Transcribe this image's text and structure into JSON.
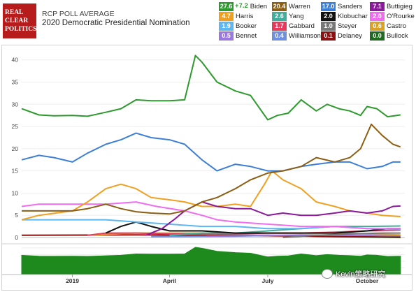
{
  "header": {
    "logo_lines": [
      "REAL",
      "CLEAR",
      "POLITICS"
    ],
    "poll_type": "RCP POLL AVERAGE",
    "title": "2020 Democratic Presidential Nomination"
  },
  "legend": [
    {
      "value": "27.6",
      "name": "Biden",
      "color": "#2e9a2e",
      "spread": "+7.2"
    },
    {
      "value": "20.4",
      "name": "Warren",
      "color": "#8b5e14"
    },
    {
      "value": "17.0",
      "name": "Sanders",
      "color": "#3d7fd6"
    },
    {
      "value": "7.1",
      "name": "Buttigieg",
      "color": "#8a1a9a"
    },
    {
      "value": "4.7",
      "name": "Harris",
      "color": "#f0a020"
    },
    {
      "value": "2.6",
      "name": "Yang",
      "color": "#3fae9c"
    },
    {
      "value": "2.0",
      "name": "Klobuchar",
      "color": "#111111"
    },
    {
      "value": "2.0",
      "name": "O'Rourke",
      "color": "#f06cf0"
    },
    {
      "value": "1.9",
      "name": "Booker",
      "color": "#5db7f0"
    },
    {
      "value": "1.7",
      "name": "Gabbard",
      "color": "#e8385c"
    },
    {
      "value": "1.0",
      "name": "Steyer",
      "color": "#777777"
    },
    {
      "value": "0.6",
      "name": "Castro",
      "color": "#d9a226"
    },
    {
      "value": "0.5",
      "name": "Bennet",
      "color": "#9a78e0"
    },
    {
      "value": "0.4",
      "name": "Williamson",
      "color": "#6f8fe0"
    },
    {
      "value": "0.1",
      "name": "Delaney",
      "color": "#8b1111"
    },
    {
      "value": "0.0",
      "name": "Bullock",
      "color": "#1f6b1f"
    }
  ],
  "watermark": "Kevin策略研究",
  "chart_data": {
    "type": "line",
    "ylim": [
      0,
      42
    ],
    "yticks": [
      0,
      5,
      10,
      15,
      20,
      25,
      30,
      35,
      40
    ],
    "x_domain": [
      "2018-11-15",
      "2019-11-05"
    ],
    "x_ticks": [
      {
        "date": "2019-01-01",
        "label": "2019"
      },
      {
        "date": "2019-04-01",
        "label": "April"
      },
      {
        "date": "2019-07-01",
        "label": "July"
      },
      {
        "date": "2019-10-01",
        "label": "October"
      }
    ],
    "series": [
      {
        "name": "Biden",
        "color": "#2e9a2e",
        "points": [
          [
            "2018-11-15",
            29
          ],
          [
            "2018-12-01",
            27.6
          ],
          [
            "2018-12-15",
            27.4
          ],
          [
            "2019-01-01",
            27.5
          ],
          [
            "2019-01-15",
            27.3
          ],
          [
            "2019-02-01",
            28.2
          ],
          [
            "2019-02-15",
            29
          ],
          [
            "2019-03-01",
            31
          ],
          [
            "2019-03-15",
            30.8
          ],
          [
            "2019-04-01",
            30.8
          ],
          [
            "2019-04-15",
            31
          ],
          [
            "2019-04-25",
            41
          ],
          [
            "2019-05-01",
            39.5
          ],
          [
            "2019-05-15",
            35
          ],
          [
            "2019-06-01",
            33
          ],
          [
            "2019-06-15",
            32
          ],
          [
            "2019-07-01",
            26.5
          ],
          [
            "2019-07-10",
            27.5
          ],
          [
            "2019-07-20",
            28
          ],
          [
            "2019-08-01",
            31
          ],
          [
            "2019-08-15",
            28.5
          ],
          [
            "2019-08-25",
            30
          ],
          [
            "2019-09-05",
            29
          ],
          [
            "2019-09-15",
            28.5
          ],
          [
            "2019-09-25",
            27.5
          ],
          [
            "2019-10-01",
            29.5
          ],
          [
            "2019-10-10",
            29
          ],
          [
            "2019-10-20",
            27.2
          ],
          [
            "2019-11-01",
            27.6
          ]
        ]
      },
      {
        "name": "Warren",
        "color": "#8b5e14",
        "points": [
          [
            "2018-11-15",
            6
          ],
          [
            "2018-12-01",
            6
          ],
          [
            "2018-12-15",
            6
          ],
          [
            "2019-01-01",
            6
          ],
          [
            "2019-01-15",
            6.5
          ],
          [
            "2019-02-01",
            7.5
          ],
          [
            "2019-02-15",
            6.5
          ],
          [
            "2019-03-01",
            5.8
          ],
          [
            "2019-03-15",
            5.5
          ],
          [
            "2019-04-01",
            5.3
          ],
          [
            "2019-04-15",
            6
          ],
          [
            "2019-05-01",
            8
          ],
          [
            "2019-05-15",
            9
          ],
          [
            "2019-06-01",
            11
          ],
          [
            "2019-06-15",
            13
          ],
          [
            "2019-07-01",
            14.5
          ],
          [
            "2019-07-15",
            15
          ],
          [
            "2019-08-01",
            16
          ],
          [
            "2019-08-15",
            18
          ],
          [
            "2019-09-01",
            17
          ],
          [
            "2019-09-15",
            18
          ],
          [
            "2019-09-25",
            20
          ],
          [
            "2019-10-05",
            25.5
          ],
          [
            "2019-10-15",
            23
          ],
          [
            "2019-10-25",
            21
          ],
          [
            "2019-11-01",
            20.4
          ]
        ]
      },
      {
        "name": "Sanders",
        "color": "#3d7fd6",
        "points": [
          [
            "2018-11-15",
            17.5
          ],
          [
            "2018-12-01",
            18.5
          ],
          [
            "2018-12-15",
            18
          ],
          [
            "2019-01-01",
            17
          ],
          [
            "2019-01-15",
            19
          ],
          [
            "2019-02-01",
            21
          ],
          [
            "2019-02-15",
            22
          ],
          [
            "2019-03-01",
            23.5
          ],
          [
            "2019-03-15",
            22.5
          ],
          [
            "2019-04-01",
            22
          ],
          [
            "2019-04-15",
            21
          ],
          [
            "2019-05-01",
            17.5
          ],
          [
            "2019-05-15",
            15
          ],
          [
            "2019-06-01",
            16.5
          ],
          [
            "2019-06-15",
            16
          ],
          [
            "2019-07-01",
            15
          ],
          [
            "2019-07-15",
            15
          ],
          [
            "2019-08-01",
            16
          ],
          [
            "2019-08-15",
            16.5
          ],
          [
            "2019-09-01",
            17
          ],
          [
            "2019-09-15",
            17
          ],
          [
            "2019-10-01",
            15.5
          ],
          [
            "2019-10-15",
            16
          ],
          [
            "2019-10-25",
            17
          ],
          [
            "2019-11-01",
            17
          ]
        ]
      },
      {
        "name": "Buttigieg",
        "color": "#8a1a9a",
        "points": [
          [
            "2019-03-10",
            0.5
          ],
          [
            "2019-03-25",
            2
          ],
          [
            "2019-04-05",
            4
          ],
          [
            "2019-04-15",
            6
          ],
          [
            "2019-05-01",
            8
          ],
          [
            "2019-05-15",
            7
          ],
          [
            "2019-06-01",
            6.5
          ],
          [
            "2019-06-15",
            6.5
          ],
          [
            "2019-07-01",
            5
          ],
          [
            "2019-07-15",
            5.5
          ],
          [
            "2019-08-01",
            5
          ],
          [
            "2019-08-15",
            5
          ],
          [
            "2019-09-01",
            5.5
          ],
          [
            "2019-09-15",
            6
          ],
          [
            "2019-10-01",
            5.5
          ],
          [
            "2019-10-15",
            6
          ],
          [
            "2019-10-25",
            7
          ],
          [
            "2019-11-01",
            7.1
          ]
        ]
      },
      {
        "name": "Harris",
        "color": "#f0a020",
        "points": [
          [
            "2018-11-15",
            4
          ],
          [
            "2018-12-01",
            5
          ],
          [
            "2019-01-01",
            6
          ],
          [
            "2019-01-15",
            8
          ],
          [
            "2019-02-01",
            11
          ],
          [
            "2019-02-15",
            12
          ],
          [
            "2019-03-01",
            11
          ],
          [
            "2019-03-15",
            9
          ],
          [
            "2019-04-01",
            8.5
          ],
          [
            "2019-04-15",
            8
          ],
          [
            "2019-05-01",
            7
          ],
          [
            "2019-05-15",
            7
          ],
          [
            "2019-06-01",
            7.5
          ],
          [
            "2019-06-15",
            7
          ],
          [
            "2019-06-28",
            12
          ],
          [
            "2019-07-05",
            15
          ],
          [
            "2019-07-15",
            13
          ],
          [
            "2019-08-01",
            11
          ],
          [
            "2019-08-15",
            8
          ],
          [
            "2019-09-01",
            7
          ],
          [
            "2019-09-15",
            6
          ],
          [
            "2019-10-01",
            5.5
          ],
          [
            "2019-10-15",
            5
          ],
          [
            "2019-11-01",
            4.7
          ]
        ]
      },
      {
        "name": "O'Rourke",
        "color": "#f06cf0",
        "points": [
          [
            "2018-11-15",
            7
          ],
          [
            "2018-12-01",
            7.5
          ],
          [
            "2019-01-01",
            7.5
          ],
          [
            "2019-02-01",
            7.5
          ],
          [
            "2019-03-01",
            8
          ],
          [
            "2019-03-20",
            7
          ],
          [
            "2019-04-15",
            6
          ],
          [
            "2019-05-01",
            5
          ],
          [
            "2019-05-15",
            4
          ],
          [
            "2019-06-01",
            3.5
          ],
          [
            "2019-07-01",
            3
          ],
          [
            "2019-08-01",
            2.5
          ],
          [
            "2019-09-01",
            2.5
          ],
          [
            "2019-10-01",
            2
          ],
          [
            "2019-11-01",
            2
          ]
        ]
      },
      {
        "name": "Booker",
        "color": "#5db7f0",
        "points": [
          [
            "2018-11-15",
            4
          ],
          [
            "2018-12-01",
            4
          ],
          [
            "2019-01-01",
            4
          ],
          [
            "2019-02-01",
            4
          ],
          [
            "2019-03-01",
            3.5
          ],
          [
            "2019-04-01",
            3
          ],
          [
            "2019-05-01",
            2.5
          ],
          [
            "2019-06-01",
            2.5
          ],
          [
            "2019-07-01",
            2
          ],
          [
            "2019-08-01",
            2
          ],
          [
            "2019-09-01",
            2.5
          ],
          [
            "2019-10-01",
            2
          ],
          [
            "2019-11-01",
            1.9
          ]
        ]
      },
      {
        "name": "Klobuchar",
        "color": "#111111",
        "points": [
          [
            "2019-02-01",
            1
          ],
          [
            "2019-02-15",
            2.5
          ],
          [
            "2019-03-01",
            3.5
          ],
          [
            "2019-03-15",
            2.5
          ],
          [
            "2019-04-01",
            1.5
          ],
          [
            "2019-05-01",
            1.5
          ],
          [
            "2019-06-01",
            1
          ],
          [
            "2019-07-01",
            1
          ],
          [
            "2019-08-01",
            1
          ],
          [
            "2019-09-01",
            1
          ],
          [
            "2019-10-01",
            1.5
          ],
          [
            "2019-10-20",
            2
          ],
          [
            "2019-11-01",
            2
          ]
        ]
      },
      {
        "name": "Yang",
        "color": "#3fae9c",
        "points": [
          [
            "2019-04-01",
            0.5
          ],
          [
            "2019-05-01",
            1
          ],
          [
            "2019-06-01",
            1
          ],
          [
            "2019-07-01",
            1.5
          ],
          [
            "2019-08-01",
            2
          ],
          [
            "2019-09-01",
            2.5
          ],
          [
            "2019-10-01",
            2.5
          ],
          [
            "2019-11-01",
            2.6
          ]
        ]
      },
      {
        "name": "Gabbard",
        "color": "#e8385c",
        "points": [
          [
            "2019-01-15",
            0.5
          ],
          [
            "2019-02-01",
            1
          ],
          [
            "2019-03-01",
            1
          ],
          [
            "2019-04-01",
            0.8
          ],
          [
            "2019-05-01",
            0.8
          ],
          [
            "2019-06-01",
            0.8
          ],
          [
            "2019-07-01",
            1
          ],
          [
            "2019-08-01",
            1
          ],
          [
            "2019-09-01",
            1.2
          ],
          [
            "2019-10-01",
            1.5
          ],
          [
            "2019-11-01",
            1.7
          ]
        ]
      },
      {
        "name": "Steyer",
        "color": "#777777",
        "points": [
          [
            "2019-07-15",
            0
          ],
          [
            "2019-08-15",
            0.5
          ],
          [
            "2019-09-15",
            0.8
          ],
          [
            "2019-10-15",
            1
          ],
          [
            "2019-11-01",
            1
          ]
        ]
      },
      {
        "name": "Castro",
        "color": "#d9a226",
        "points": [
          [
            "2019-01-15",
            0.5
          ],
          [
            "2019-03-01",
            1
          ],
          [
            "2019-05-01",
            1
          ],
          [
            "2019-07-01",
            1
          ],
          [
            "2019-09-01",
            1
          ],
          [
            "2019-11-01",
            0.6
          ]
        ]
      },
      {
        "name": "Bennet",
        "color": "#9a78e0",
        "points": [
          [
            "2019-05-05",
            0.3
          ],
          [
            "2019-07-01",
            0.5
          ],
          [
            "2019-09-01",
            0.5
          ],
          [
            "2019-11-01",
            0.5
          ]
        ]
      },
      {
        "name": "Williamson",
        "color": "#6f8fe0",
        "points": [
          [
            "2019-03-15",
            0.2
          ],
          [
            "2019-06-01",
            0.3
          ],
          [
            "2019-08-01",
            0.6
          ],
          [
            "2019-11-01",
            0.4
          ]
        ]
      },
      {
        "name": "Delaney",
        "color": "#8b1111",
        "points": [
          [
            "2018-11-15",
            0.5
          ],
          [
            "2019-03-01",
            0.6
          ],
          [
            "2019-07-01",
            0.4
          ],
          [
            "2019-11-01",
            0.1
          ]
        ]
      },
      {
        "name": "Bullock",
        "color": "#1f6b1f",
        "points": [
          [
            "2019-05-15",
            0.5
          ],
          [
            "2019-07-01",
            0.5
          ],
          [
            "2019-09-01",
            0.2
          ],
          [
            "2019-11-01",
            0
          ]
        ]
      }
    ],
    "navigator": {
      "color": "#1e8a1e",
      "series_name": "Biden"
    }
  }
}
